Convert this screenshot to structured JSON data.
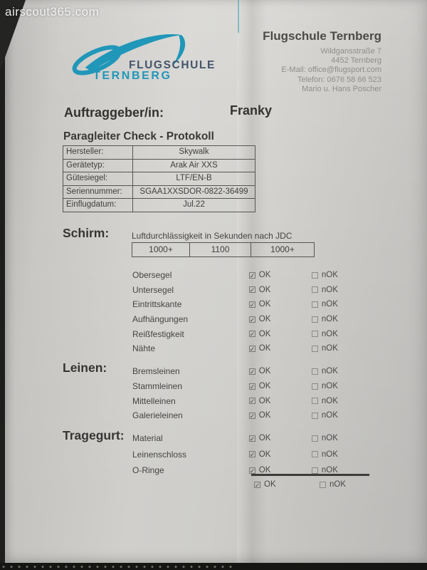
{
  "watermark": "airscout365.com",
  "logo": {
    "word1": "FLUGSCHULE",
    "word2": "TERNBERG",
    "teal": "#2097b9",
    "slate": "#45556a"
  },
  "header": {
    "company": "Flugschule Ternberg",
    "lines": [
      "Wildgansstraße 7",
      "4452 Ternberg",
      "E-Mail: office@flugsport.com",
      "Telefon: 0676 58 66 523",
      "Mario u. Hans Poscher"
    ]
  },
  "client": {
    "label": "Auftraggeber/in:",
    "value": "Franky"
  },
  "protocol": {
    "title": "Paragleiter Check - Protokoll",
    "rows": [
      {
        "label": "Hersteller:",
        "value": "Skywalk"
      },
      {
        "label": "Gerätetyp:",
        "value": "Arak Air XXS"
      },
      {
        "label": "Gütesiegel:",
        "value": "LTF/EN-B"
      },
      {
        "label": "Seriennummer:",
        "value": "SGAA1XXSDOR-0822-36499"
      },
      {
        "label": "Einflugdatum:",
        "value": "Jul.22"
      }
    ]
  },
  "porosity": {
    "label": "Luftdurchlässigkeit in Sekunden nach JDC",
    "values": [
      "1000+",
      "1100",
      "1000+"
    ]
  },
  "checks": {
    "ok": "OK",
    "nok": "nOK"
  },
  "sections": [
    {
      "label": "Schirm:",
      "items": [
        {
          "name": "Obersegel",
          "ok": true,
          "nok": false
        },
        {
          "name": "Untersegel",
          "ok": true,
          "nok": false
        },
        {
          "name": "Eintrittskante",
          "ok": true,
          "nok": false
        },
        {
          "name": "Aufhängungen",
          "ok": true,
          "nok": false
        },
        {
          "name": "Reißfestigkeit",
          "ok": true,
          "nok": false
        },
        {
          "name": "Nähte",
          "ok": true,
          "nok": false
        }
      ]
    },
    {
      "label": "Leinen:",
      "items": [
        {
          "name": "Bremsleinen",
          "ok": true,
          "nok": false
        },
        {
          "name": "Stammleinen",
          "ok": true,
          "nok": false
        },
        {
          "name": "Mittelleinen",
          "ok": true,
          "nok": false
        },
        {
          "name": "Galerieleinen",
          "ok": true,
          "nok": false
        }
      ]
    },
    {
      "label": "Tragegurt:",
      "items": [
        {
          "name": "Material",
          "ok": true,
          "nok": false
        },
        {
          "name": "Leinenschloss",
          "ok": true,
          "nok": false
        },
        {
          "name": "O-Ringe",
          "ok": true,
          "nok": false
        }
      ]
    }
  ],
  "summary": {
    "ok": true,
    "nok": false
  }
}
